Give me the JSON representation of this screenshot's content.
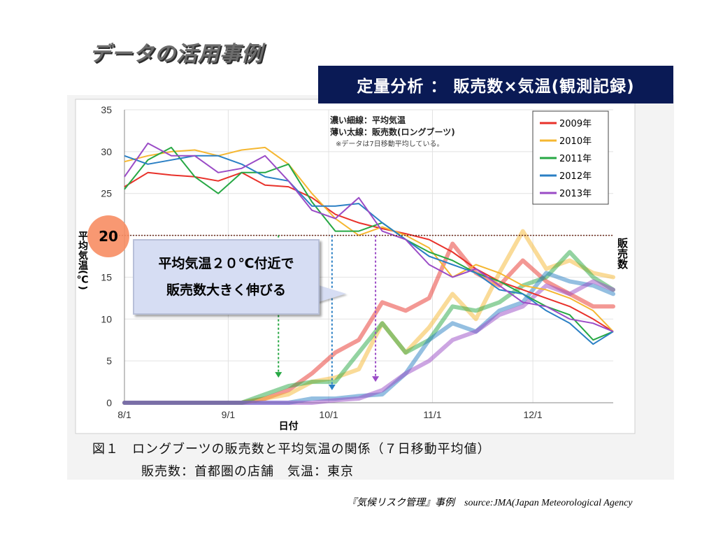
{
  "slide": {
    "title": "データの活用事例",
    "banner": "定量分析 ： 販売数×気温(観測記録)",
    "source": "『気候リスク管理』事例　source:JMA(Japan Meteorological Agency",
    "caption_line1": "図１　ロングブーツの販売数と平均気温の関係（７日移動平均値）",
    "caption_line2": "販売数：首都圏の店舗　気温：東京",
    "callout_line1": "平均気温２０℃付近で",
    "callout_line2": "販売数大きく伸びる",
    "marker_value": "20"
  },
  "chart_data": {
    "type": "line",
    "xlabel": "日付",
    "ylabel": "平均気温(℃)",
    "ylabel_right": "販売数",
    "x_tick_labels": [
      "8/1",
      "9/1",
      "10/1",
      "11/1",
      "12/1"
    ],
    "x_domain": [
      "8/1",
      "12/25"
    ],
    "y_ticks": [
      0,
      5,
      10,
      15,
      20,
      25,
      30,
      35
    ],
    "ylim": [
      0,
      35
    ],
    "note_line1": "濃い細線：平均気温",
    "note_line2": "薄い太線：販売数(ロングブーツ)",
    "note_line3": "※データは7日移動平均している。",
    "reference_line": 20,
    "legend_position": "top-right",
    "colors": {
      "2009年": "#e8312a",
      "2010年": "#f5b731",
      "2011年": "#27a844",
      "2012年": "#2a7fc4",
      "2013年": "#9a4bc6"
    },
    "series_x": [
      0,
      7,
      14,
      21,
      28,
      35,
      42,
      49,
      56,
      63,
      70,
      77,
      84,
      91,
      98,
      105,
      112,
      119,
      126,
      133,
      140,
      146
    ],
    "series": [
      {
        "name": "2009年",
        "kind": "temperature",
        "values": [
          25.8,
          27.5,
          27.2,
          27.0,
          26.5,
          27.5,
          26.0,
          25.8,
          24.5,
          22.5,
          21.5,
          20.8,
          20.2,
          19.5,
          18.0,
          16.0,
          14.5,
          13.5,
          12.5,
          11.5,
          10.0,
          8.5
        ]
      },
      {
        "name": "2010年",
        "kind": "temperature",
        "values": [
          28.8,
          29.5,
          30.0,
          30.2,
          29.5,
          30.2,
          30.5,
          28.5,
          25.0,
          22.0,
          20.0,
          21.0,
          20.0,
          18.5,
          15.0,
          16.5,
          15.5,
          14.0,
          13.5,
          12.5,
          11.0,
          8.5
        ]
      },
      {
        "name": "2011年",
        "kind": "temperature",
        "values": [
          25.5,
          29.0,
          30.5,
          27.0,
          25.0,
          27.5,
          27.5,
          28.5,
          24.0,
          20.5,
          20.5,
          21.5,
          19.5,
          18.0,
          17.0,
          15.5,
          14.5,
          13.0,
          11.5,
          10.5,
          7.5,
          8.5
        ]
      },
      {
        "name": "2012年",
        "kind": "temperature",
        "values": [
          29.5,
          28.5,
          29.0,
          29.5,
          29.5,
          28.5,
          27.0,
          26.5,
          23.5,
          23.5,
          23.8,
          21.5,
          19.5,
          17.5,
          16.5,
          15.5,
          13.5,
          13.0,
          11.0,
          9.5,
          7.0,
          8.5
        ]
      },
      {
        "name": "2013年",
        "kind": "temperature",
        "values": [
          27.0,
          31.0,
          29.5,
          29.5,
          27.5,
          28.0,
          29.5,
          26.5,
          23.0,
          22.0,
          24.5,
          20.5,
          19.5,
          16.5,
          15.0,
          16.0,
          14.0,
          12.0,
          11.5,
          10.0,
          9.5,
          8.5
        ]
      },
      {
        "name": "2009年",
        "kind": "sales",
        "values": [
          0,
          0,
          0,
          0,
          0,
          0,
          0.5,
          1.5,
          3.5,
          6.0,
          7.5,
          12.0,
          11.0,
          12.5,
          19.0,
          15.5,
          14.0,
          17.0,
          14.5,
          13.0,
          11.5,
          11.5
        ]
      },
      {
        "name": "2010年",
        "kind": "sales",
        "values": [
          0,
          0,
          0,
          0,
          0,
          0,
          0.5,
          1.0,
          2.5,
          3.0,
          4.0,
          9.5,
          6.0,
          9.0,
          13.0,
          10.0,
          15.5,
          20.5,
          16.0,
          17.0,
          15.5,
          15.0
        ]
      },
      {
        "name": "2011年",
        "kind": "sales",
        "values": [
          0,
          0,
          0,
          0,
          0,
          0,
          1.0,
          2.0,
          2.5,
          2.5,
          6.0,
          9.5,
          6.0,
          7.5,
          11.5,
          11.0,
          12.0,
          14.0,
          15.0,
          18.0,
          15.0,
          13.5
        ]
      },
      {
        "name": "2012年",
        "kind": "sales",
        "values": [
          0,
          0,
          0,
          0,
          0,
          0,
          0,
          0,
          0.5,
          0.5,
          0.8,
          1.0,
          3.5,
          7.5,
          9.5,
          8.5,
          11.0,
          12.0,
          15.5,
          14.5,
          14.0,
          13.0
        ]
      },
      {
        "name": "2013年",
        "kind": "sales",
        "values": [
          0,
          0,
          0,
          0,
          0,
          0,
          0,
          0,
          0,
          0.3,
          0.5,
          1.5,
          3.5,
          5.0,
          7.5,
          8.5,
          10.5,
          11.5,
          14.0,
          13.0,
          14.5,
          13.5
        ]
      }
    ],
    "arrows": [
      {
        "color": "#27a844",
        "x": 46,
        "from": 20,
        "to": 3
      },
      {
        "color": "#2a7fc4",
        "x": 62,
        "from": 20,
        "to": 1.5
      },
      {
        "color": "#9a4bc6",
        "x": 75,
        "from": 20,
        "to": 2.5
      }
    ]
  }
}
